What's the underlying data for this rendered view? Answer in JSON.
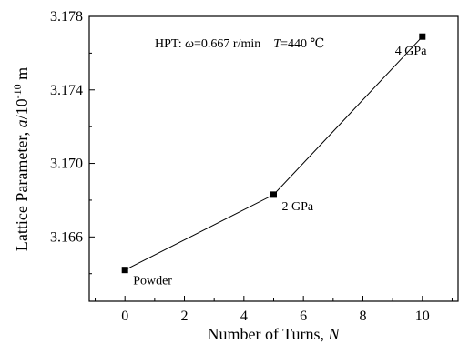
{
  "chart_data": {
    "type": "line",
    "title": "",
    "xlabel": "Number of Turns, ",
    "xlabel_var": "N",
    "ylabel": "Lattice Parameter, ",
    "ylabel_var": "a",
    "ylabel_unit": "/10",
    "ylabel_exp": "-10",
    "ylabel_tail": " m",
    "xlim": [
      -1.2,
      11.2
    ],
    "ylim": [
      3.1625,
      3.178
    ],
    "xticks": [
      0,
      2,
      4,
      6,
      8,
      10
    ],
    "xtick_labels": [
      "0",
      "2",
      "4",
      "6",
      "8",
      "10"
    ],
    "yticks": [
      3.166,
      3.17,
      3.174,
      3.178
    ],
    "ytick_labels": [
      "3.166",
      "3.170",
      "3.174",
      "3.178"
    ],
    "grid": false,
    "series": [
      {
        "x": [
          0,
          5,
          10
        ],
        "y": [
          3.1642,
          3.1683,
          3.1769
        ],
        "labels": [
          "Powder",
          "2 GPa",
          "4 GPa"
        ],
        "color": "#000000",
        "marker": "square"
      }
    ],
    "annotation": {
      "prefix": "HPT: ",
      "omega_symbol": "ω",
      "omega_value": "=0.667 r/min",
      "t_symbol": "T",
      "t_value": "=440 ℃"
    }
  }
}
